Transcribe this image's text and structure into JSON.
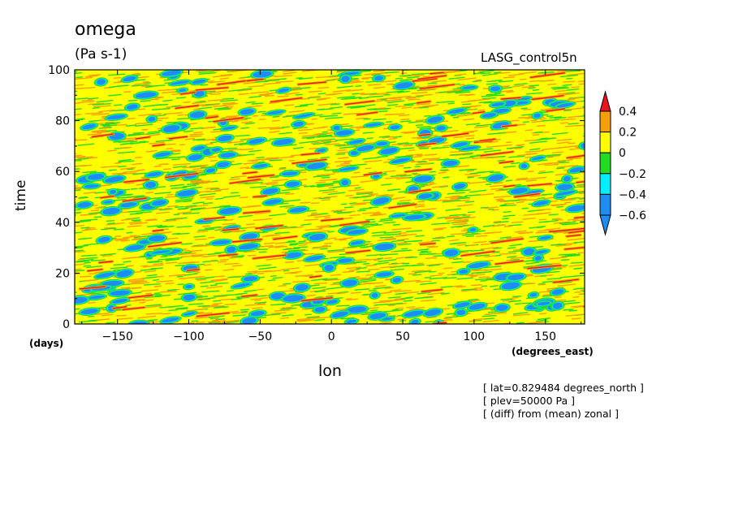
{
  "chart_data": {
    "type": "heatmap",
    "title": "omega",
    "units": "(Pa s-1)",
    "run_name": "LASG_control5n",
    "xlabel": "lon",
    "xunits": "(degrees_east)",
    "ylabel": "time",
    "yunits": "(days)",
    "xlim": [
      -180,
      177.5
    ],
    "ylim": [
      0,
      100
    ],
    "x_ticks": [
      -150,
      -100,
      -50,
      0,
      50,
      100,
      150
    ],
    "x_tick_labels": [
      "−150",
      "−100",
      "−50",
      "0",
      "50",
      "100",
      "150"
    ],
    "y_ticks": [
      0,
      20,
      40,
      60,
      80,
      100
    ],
    "y_tick_labels": [
      "0",
      "20",
      "40",
      "60",
      "80",
      "100"
    ],
    "colorbar": {
      "levels": [
        0.4,
        0.2,
        0,
        -0.2,
        -0.4,
        -0.6
      ],
      "level_labels": [
        "0.4",
        "0.2",
        "0",
        "−0.2",
        "−0.4",
        "−0.6"
      ],
      "colors": [
        "#e8141e",
        "#f5a00a",
        "#ffff00",
        "#22dc22",
        "#00eeff",
        "#1e8cf0"
      ],
      "extends": "both"
    },
    "annotations": [
      "[ lat=0.829484 degrees_north ]",
      "[ plev=50000 Pa ]",
      "[ (diff) from (mean) zonal ]"
    ],
    "field_description": "zonal anomaly of omega at 500 hPa, mostly near zero (yellow/orange) with scattered negative (blue) patches and thin positive (red) streaks"
  }
}
